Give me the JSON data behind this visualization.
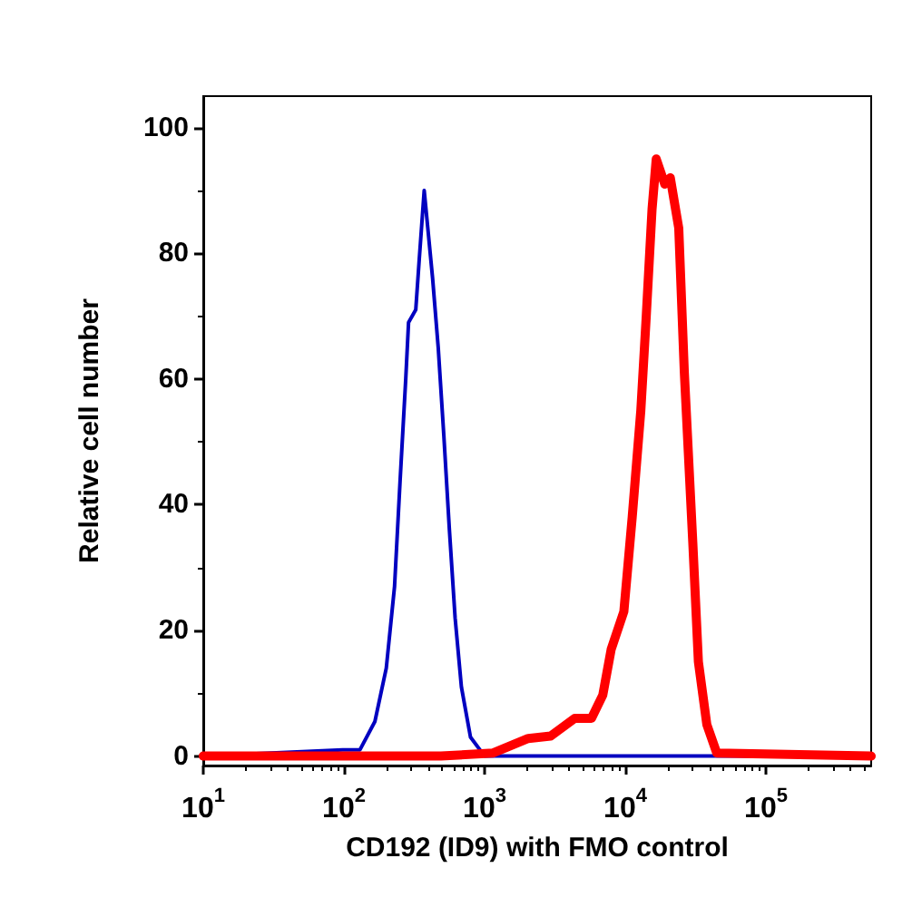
{
  "chart_data": {
    "type": "line",
    "xlabel": "CD192 (ID9) with FMO control",
    "ylabel": "Relative cell number",
    "log": "x",
    "xlim": [
      10,
      560000
    ],
    "xticks": [
      {
        "value": 10,
        "label": "10$^{1}$"
      },
      {
        "value": 100,
        "label": "10$^{2}$"
      },
      {
        "value": 1000,
        "label": "10$^{3}$"
      },
      {
        "value": 10000,
        "label": "10$^{4}$"
      },
      {
        "value": 100000,
        "label": "10$^{5}$"
      }
    ],
    "ylim": [
      -1.5,
      105
    ],
    "yticks": [
      0,
      20,
      40,
      60,
      80,
      100
    ],
    "marker": "none",
    "line_style": "solid",
    "series": [
      {
        "color": "#0000c0",
        "x": [
          10,
          98,
          130,
          166,
          200,
          229,
          251,
          275,
          288,
          324,
          343,
          372,
          427,
          468,
          513,
          562,
          617,
          684,
          794,
          1000,
          560000
        ],
        "values": [
          0,
          1,
          1,
          5.5,
          14,
          27,
          44,
          60,
          69,
          71,
          79,
          90,
          76,
          65,
          51,
          36,
          22,
          11,
          3,
          0,
          0
        ]
      },
      {
        "color": "#ff0000",
        "x": [
          10,
          490,
          1150,
          2040,
          2950,
          4370,
          5750,
          6920,
          7940,
          9770,
          11200,
          12900,
          14100,
          15500,
          16600,
          19100,
          20900,
          24000,
          26300,
          30200,
          33100,
          38000,
          44700,
          560000
        ],
        "values": [
          0,
          0,
          0.5,
          2.8,
          3.2,
          6,
          6,
          9.7,
          17,
          23,
          38,
          55,
          70,
          87,
          95,
          91,
          92,
          84,
          61,
          34,
          15,
          5,
          0.5,
          0
        ]
      }
    ]
  }
}
